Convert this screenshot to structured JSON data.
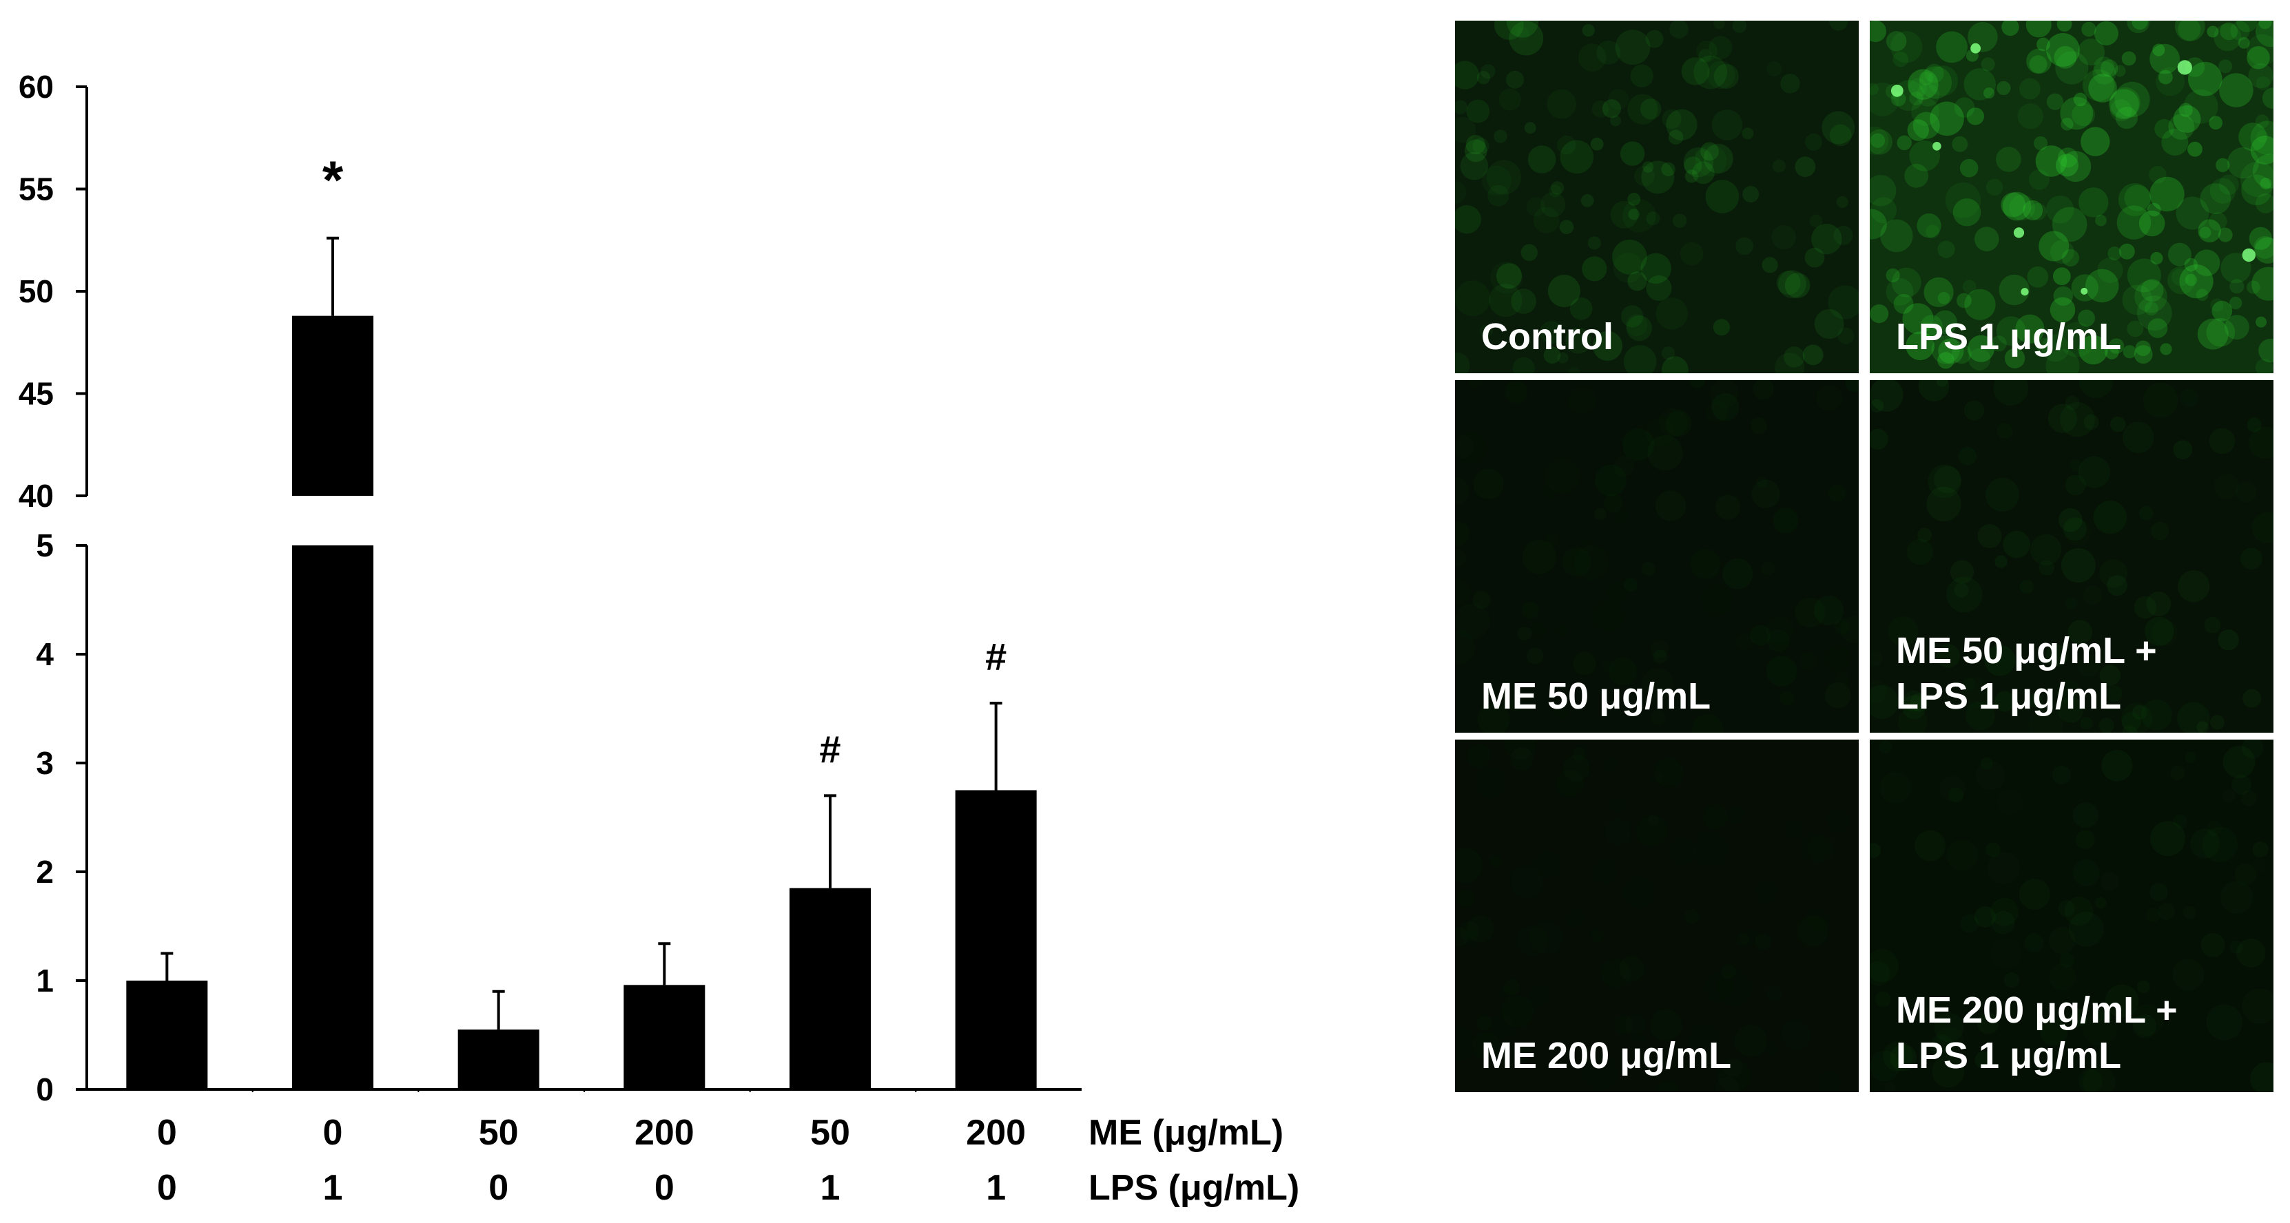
{
  "chart_data": {
    "type": "bar",
    "broken_axis": true,
    "lower_segment": {
      "ylim": [
        0,
        5
      ],
      "ticks": [
        "0",
        "1",
        "2",
        "3",
        "4",
        "5"
      ]
    },
    "upper_segment": {
      "ylim": [
        40,
        60
      ],
      "ticks": [
        "40",
        "45",
        "50",
        "55",
        "60"
      ]
    },
    "categories": [
      {
        "me": "0",
        "lps": "0"
      },
      {
        "me": "0",
        "lps": "1"
      },
      {
        "me": "50",
        "lps": "0"
      },
      {
        "me": "200",
        "lps": "0"
      },
      {
        "me": "50",
        "lps": "1"
      },
      {
        "me": "200",
        "lps": "1"
      }
    ],
    "values": [
      1.0,
      48.8,
      0.55,
      0.96,
      1.85,
      2.75
    ],
    "errors": [
      0.25,
      3.8,
      0.35,
      0.38,
      0.85,
      0.8
    ],
    "annotations": [
      "",
      "*",
      "",
      "",
      "#",
      "#"
    ],
    "row_labels": {
      "me": "ME (μg/mL)",
      "lps": "LPS (μg/mL)"
    },
    "bar_color": "#000000"
  },
  "micrographs": {
    "fluorescence_color": "#2fd02f",
    "panels": [
      {
        "label": "Control",
        "intensity": 0.45
      },
      {
        "label": "LPS 1 μg/mL",
        "intensity": 1.0
      },
      {
        "label": "ME 50 μg/mL",
        "intensity": 0.12
      },
      {
        "label": "ME 50 μg/mL +\nLPS 1 μg/mL",
        "intensity": 0.2
      },
      {
        "label": "ME 200 μg/mL",
        "intensity": 0.08
      },
      {
        "label": "ME 200 μg/mL +\nLPS 1 μg/mL",
        "intensity": 0.14
      }
    ]
  }
}
